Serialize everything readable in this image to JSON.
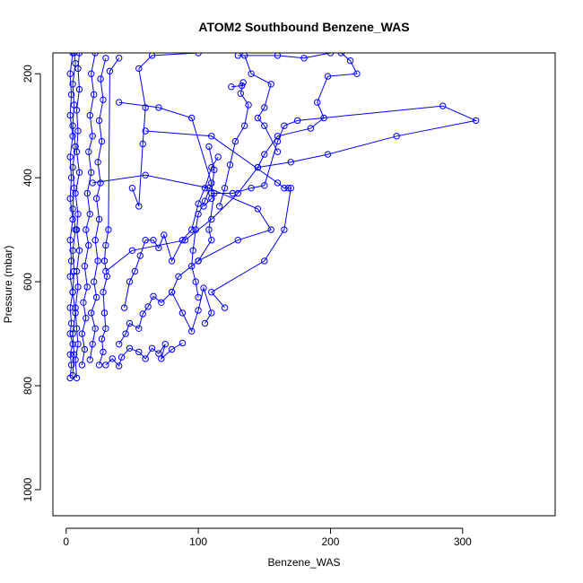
{
  "chart_data": {
    "type": "line",
    "title": "ATOM2 Southbound Benzene_WAS",
    "xlabel": "Benzene_WAS",
    "ylabel": "Pressure (mbar)",
    "xlim": [
      -10,
      370
    ],
    "ylim": [
      1050,
      160
    ],
    "y_reversed": true,
    "grid": false,
    "x_ticks": [
      0,
      100,
      200,
      300
    ],
    "y_ticks": [
      200,
      400,
      600,
      800,
      1000
    ],
    "series_color": "#0000ff",
    "series": [
      {
        "points": [
          [
            3,
            785
          ],
          [
            4,
            760
          ],
          [
            3,
            740
          ],
          [
            5,
            720
          ],
          [
            3,
            700
          ],
          [
            4,
            680
          ],
          [
            3,
            650
          ],
          [
            5,
            620
          ],
          [
            3,
            590
          ],
          [
            4,
            560
          ],
          [
            3,
            520
          ],
          [
            5,
            480
          ],
          [
            3,
            440
          ],
          [
            4,
            400
          ],
          [
            3,
            360
          ],
          [
            5,
            320
          ],
          [
            3,
            280
          ],
          [
            4,
            240
          ],
          [
            3,
            200
          ],
          [
            5,
            160
          ]
        ]
      },
      {
        "points": [
          [
            5,
            780
          ],
          [
            6,
            740
          ],
          [
            5,
            700
          ],
          [
            7,
            660
          ],
          [
            5,
            620
          ],
          [
            6,
            580
          ],
          [
            5,
            540
          ],
          [
            7,
            500
          ],
          [
            5,
            460
          ],
          [
            6,
            420
          ],
          [
            5,
            380
          ],
          [
            7,
            340
          ],
          [
            5,
            300
          ],
          [
            6,
            260
          ],
          [
            5,
            220
          ],
          [
            7,
            180
          ],
          [
            6,
            160
          ]
        ]
      },
      {
        "points": [
          [
            8,
            785
          ],
          [
            7,
            750
          ],
          [
            9,
            720
          ],
          [
            8,
            690
          ],
          [
            7,
            650
          ],
          [
            9,
            610
          ],
          [
            8,
            580
          ],
          [
            10,
            540
          ],
          [
            8,
            500
          ],
          [
            9,
            470
          ],
          [
            7,
            430
          ],
          [
            10,
            390
          ],
          [
            8,
            350
          ],
          [
            9,
            310
          ],
          [
            8,
            270
          ],
          [
            10,
            230
          ],
          [
            9,
            190
          ],
          [
            10,
            160
          ]
        ]
      },
      {
        "points": [
          [
            12,
            760
          ],
          [
            14,
            730
          ],
          [
            12,
            700
          ],
          [
            15,
            670
          ],
          [
            13,
            640
          ],
          [
            16,
            610
          ],
          [
            14,
            570
          ],
          [
            17,
            530
          ],
          [
            15,
            500
          ],
          [
            18,
            470
          ],
          [
            16,
            430
          ],
          [
            19,
            390
          ],
          [
            17,
            350
          ],
          [
            20,
            320
          ],
          [
            18,
            280
          ],
          [
            21,
            240
          ],
          [
            19,
            200
          ],
          [
            22,
            160
          ]
        ]
      },
      {
        "points": [
          [
            18,
            750
          ],
          [
            20,
            720
          ],
          [
            22,
            690
          ],
          [
            19,
            660
          ],
          [
            23,
            630
          ],
          [
            21,
            600
          ],
          [
            24,
            560
          ],
          [
            22,
            520
          ],
          [
            25,
            480
          ],
          [
            23,
            440
          ],
          [
            26,
            410
          ],
          [
            24,
            370
          ],
          [
            27,
            330
          ],
          [
            25,
            290
          ],
          [
            28,
            250
          ],
          [
            26,
            210
          ],
          [
            30,
            170
          ]
        ]
      },
      {
        "points": [
          [
            25,
            760
          ],
          [
            28,
            735
          ],
          [
            27,
            710
          ],
          [
            30,
            690
          ],
          [
            29,
            660
          ],
          [
            28,
            620
          ],
          [
            31,
            590
          ],
          [
            29,
            560
          ],
          [
            30,
            530
          ],
          [
            32,
            500
          ],
          [
            33,
            195
          ],
          [
            40,
            170
          ]
        ]
      },
      {
        "points": [
          [
            30,
            760
          ],
          [
            35,
            748
          ],
          [
            40,
            762
          ],
          [
            42,
            745
          ],
          [
            48,
            728
          ],
          [
            55,
            735
          ],
          [
            60,
            748
          ],
          [
            65,
            728
          ],
          [
            70,
            738
          ],
          [
            75,
            720
          ],
          [
            72,
            748
          ],
          [
            80,
            730
          ],
          [
            88,
            718
          ]
        ]
      },
      {
        "points": [
          [
            40,
            720
          ],
          [
            45,
            700
          ],
          [
            48,
            680
          ],
          [
            55,
            690
          ],
          [
            58,
            662
          ],
          [
            62,
            648
          ],
          [
            66,
            628
          ],
          [
            72,
            640
          ],
          [
            80,
            620
          ],
          [
            88,
            660
          ],
          [
            95,
            695
          ],
          [
            100,
            655
          ],
          [
            104,
            612
          ],
          [
            110,
            660
          ],
          [
            105,
            680
          ]
        ]
      },
      {
        "points": [
          [
            44,
            650
          ],
          [
            48,
            600
          ],
          [
            52,
            580
          ],
          [
            56,
            550
          ],
          [
            60,
            520
          ],
          [
            66,
            520
          ],
          [
            70,
            535
          ],
          [
            74,
            510
          ],
          [
            80,
            560
          ],
          [
            88,
            520
          ],
          [
            95,
            500
          ],
          [
            100,
            450
          ],
          [
            105,
            420
          ],
          [
            110,
            380
          ],
          [
            115,
            360
          ]
        ]
      },
      {
        "points": [
          [
            50,
            420
          ],
          [
            55,
            455
          ],
          [
            58,
            335
          ],
          [
            60,
            265
          ],
          [
            55,
            190
          ],
          [
            65,
            165
          ],
          [
            100,
            160
          ]
        ]
      },
      {
        "points": [
          [
            40,
            255
          ],
          [
            70,
            265
          ],
          [
            95,
            285
          ],
          [
            110,
            410
          ],
          [
            105,
            445
          ],
          [
            100,
            470
          ],
          [
            98,
            500
          ],
          [
            96,
            540
          ],
          [
            95,
            570
          ],
          [
            98,
            600
          ],
          [
            100,
            630
          ]
        ]
      },
      {
        "points": [
          [
            20,
            410
          ],
          [
            60,
            395
          ],
          [
            108,
            420
          ],
          [
            145,
            460
          ],
          [
            155,
            500
          ],
          [
            130,
            520
          ],
          [
            100,
            560
          ],
          [
            85,
            590
          ],
          [
            80,
            620
          ]
        ]
      },
      {
        "points": [
          [
            30,
            580
          ],
          [
            50,
            540
          ],
          [
            90,
            520
          ],
          [
            110,
            480
          ],
          [
            130,
            430
          ],
          [
            145,
            380
          ],
          [
            150,
            355
          ],
          [
            160,
            320
          ],
          [
            185,
            305
          ],
          [
            195,
            285
          ],
          [
            190,
            255
          ],
          [
            198,
            205
          ],
          [
            220,
            200
          ],
          [
            215,
            175
          ],
          [
            208,
            160
          ]
        ]
      },
      {
        "points": [
          [
            125,
            225
          ],
          [
            133,
            223
          ],
          [
            134,
            217
          ],
          [
            132,
            238
          ],
          [
            138,
            260
          ],
          [
            135,
            300
          ],
          [
            128,
            330
          ],
          [
            124,
            375
          ],
          [
            120,
            420
          ],
          [
            116,
            455
          ]
        ]
      },
      {
        "points": [
          [
            60,
            310
          ],
          [
            110,
            320
          ],
          [
            160,
            410
          ],
          [
            165,
            420
          ],
          [
            168,
            420
          ],
          [
            170,
            420
          ],
          [
            165,
            500
          ],
          [
            150,
            560
          ],
          [
            110,
            620
          ],
          [
            120,
            650
          ]
        ]
      },
      {
        "points": [
          [
            108,
            340
          ],
          [
            112,
            385
          ],
          [
            110,
            430
          ],
          [
            126,
            430
          ],
          [
            140,
            420
          ],
          [
            150,
            415
          ],
          [
            160,
            330
          ],
          [
            165,
            300
          ],
          [
            175,
            290
          ],
          [
            285,
            262
          ],
          [
            310,
            290
          ],
          [
            250,
            320
          ],
          [
            198,
            355
          ],
          [
            170,
            370
          ],
          [
            145,
            380
          ]
        ]
      },
      {
        "points": [
          [
            130,
            165
          ],
          [
            160,
            165
          ],
          [
            180,
            170
          ],
          [
            200,
            160
          ]
        ]
      },
      {
        "points": [
          [
            135,
            165
          ],
          [
            140,
            200
          ],
          [
            155,
            220
          ],
          [
            150,
            265
          ],
          [
            145,
            285
          ],
          [
            150,
            300
          ],
          [
            160,
            350
          ]
        ]
      },
      {
        "points": [
          [
            104,
            455
          ],
          [
            110,
            440
          ],
          [
            112,
            430
          ],
          [
            108,
            500
          ],
          [
            110,
            520
          ],
          [
            100,
            560
          ]
        ]
      }
    ]
  }
}
